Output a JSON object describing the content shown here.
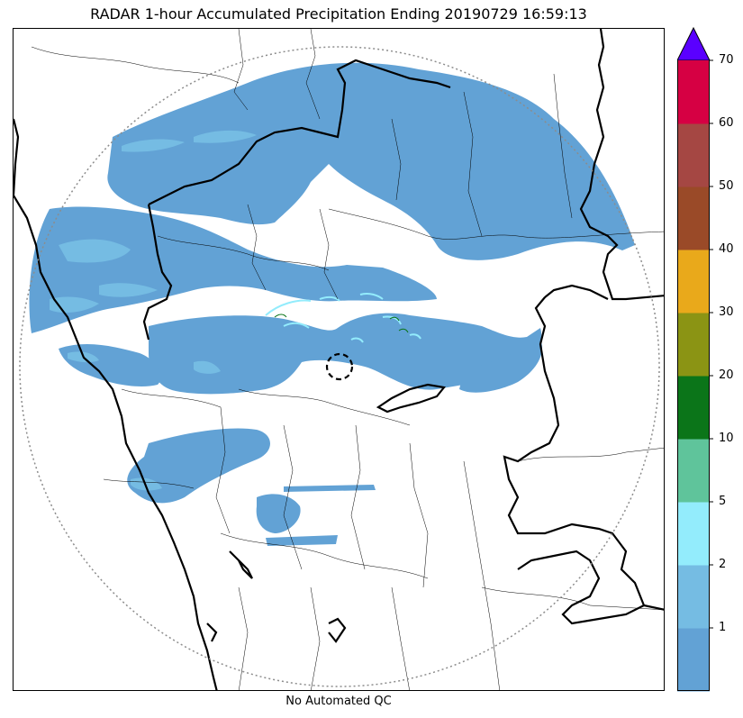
{
  "title": "RADAR 1-hour Accumulated Precipitation Ending 20190729 16:59:13",
  "footer": "No Automated QC",
  "colorbar": {
    "extend_max": true,
    "extend_color": "#5a00ff",
    "bins": [
      {
        "label": "1",
        "color": "#62a2d5"
      },
      {
        "label": "2",
        "color": "#75bce3"
      },
      {
        "label": "5",
        "color": "#93ecfc"
      },
      {
        "label": "10",
        "color": "#5fc49b"
      },
      {
        "label": "20",
        "color": "#0b7519"
      },
      {
        "label": "30",
        "color": "#8b9414"
      },
      {
        "label": "40",
        "color": "#e9a91b"
      },
      {
        "label": "50",
        "color": "#9a4a28"
      },
      {
        "label": "60",
        "color": "#a54743"
      },
      {
        "label": "70",
        "color": "#d60043"
      }
    ]
  },
  "colors": {
    "rain_main": "#62a2d5",
    "rain_light": "#75bce3",
    "rain_cyan": "#93ecfc",
    "range_ring": "#8c8c8c",
    "coastline": "#000000"
  }
}
